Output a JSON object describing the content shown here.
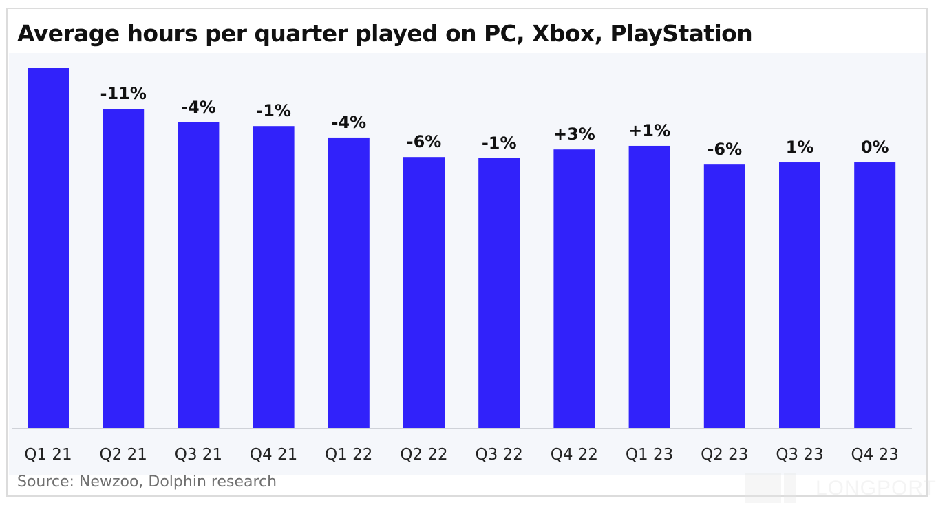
{
  "title": "Average hours per quarter played on PC, Xbox, PlayStation",
  "source": "Source: Newzoo, Dolphin research",
  "watermark": "LONGPORT",
  "colors": {
    "bar": "#3122fa",
    "label": "#111111",
    "axis_label": "#222222",
    "plot_bg": "#f5f7fb",
    "baseline": "#cfd2d8"
  },
  "chart_data": {
    "type": "bar",
    "title": "Average hours per quarter played on PC, Xbox, PlayStation",
    "xlabel": "",
    "ylabel": "",
    "y_axis_shown": false,
    "value_unit": "relative index (Q1 21 = 100), estimated from bar heights",
    "ylim": [
      0,
      100
    ],
    "grid": false,
    "legend": "none",
    "categories": [
      "Q1 21",
      "Q2 21",
      "Q3 21",
      "Q4 21",
      "Q1 22",
      "Q2 22",
      "Q3 22",
      "Q4 22",
      "Q1 23",
      "Q2 23",
      "Q3 23",
      "Q4 23"
    ],
    "values": [
      100,
      88.7,
      84.9,
      83.9,
      80.7,
      75.3,
      75.0,
      77.4,
      78.4,
      73.2,
      73.8,
      73.8
    ],
    "data_labels": [
      "",
      "-11%",
      "-4%",
      "-1%",
      "-4%",
      "-6%",
      "-1%",
      "+3%",
      "+1%",
      "-6%",
      "1%",
      "0%"
    ],
    "annotations": [
      "Source: Newzoo, Dolphin research"
    ]
  }
}
